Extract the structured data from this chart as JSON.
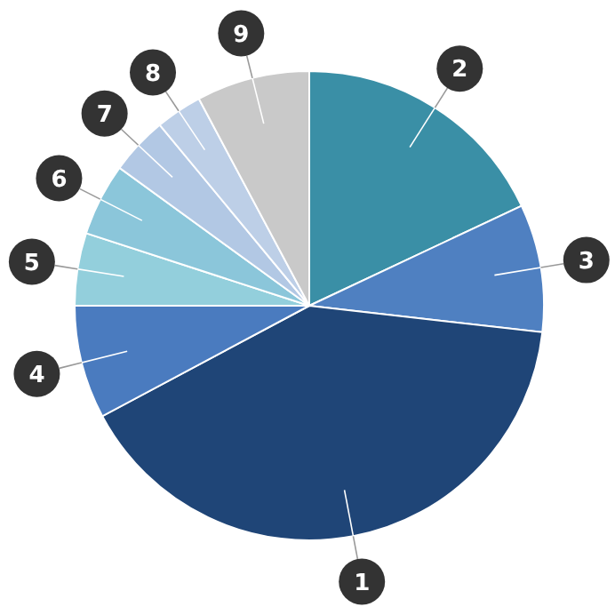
{
  "chart_data": {
    "type": "pie",
    "categories": [
      "2",
      "3",
      "1",
      "4",
      "5",
      "6",
      "7",
      "8",
      "9"
    ],
    "values": [
      18,
      8.8,
      40.4,
      7.8,
      5,
      5,
      4,
      3.2,
      7.8
    ],
    "colors": [
      "#3a8fa6",
      "#4f80c1",
      "#1f4577",
      "#4a7bbf",
      "#93cfdc",
      "#8bc6da",
      "#b2c8e4",
      "#bdcfe7",
      "#c9c9c9"
    ]
  }
}
